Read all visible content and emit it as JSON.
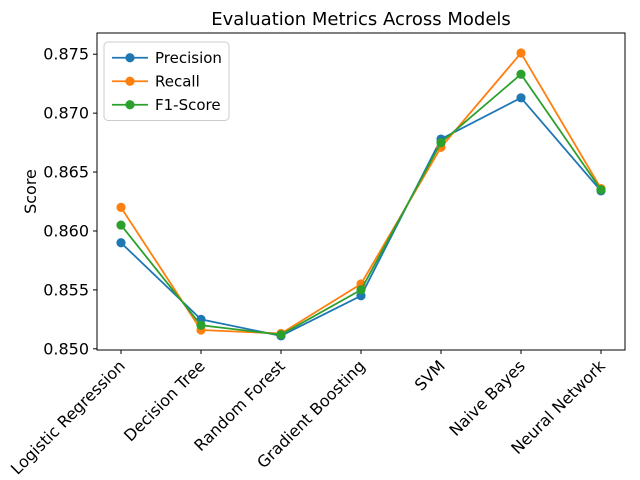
{
  "figure": {
    "background": "#ffffff",
    "axes_edge_color": "#000000",
    "legend_border_color": "#cccccc"
  },
  "chart_data": {
    "type": "line",
    "title": "Evaluation Metrics Across Models",
    "xlabel": "",
    "ylabel": "Score",
    "categories": [
      "Logistic Regression",
      "Decision Tree",
      "Random Forest",
      "Gradient Boosting",
      "SVM",
      "Naive Bayes",
      "Neural Network"
    ],
    "series": [
      {
        "name": "Precision",
        "color": "#1f77b4",
        "values": [
          0.859,
          0.8525,
          0.8511,
          0.8545,
          0.8678,
          0.8713,
          0.8634
        ]
      },
      {
        "name": "Recall",
        "color": "#ff7f0e",
        "values": [
          0.862,
          0.8516,
          0.8513,
          0.8555,
          0.8671,
          0.8751,
          0.8636
        ]
      },
      {
        "name": "F1-Score",
        "color": "#2ca02c",
        "values": [
          0.8605,
          0.852,
          0.8512,
          0.855,
          0.8675,
          0.8733,
          0.8635
        ]
      }
    ],
    "y_ticks": [
      0.85,
      0.855,
      0.86,
      0.865,
      0.87,
      0.875
    ],
    "y_tick_labels": [
      "0.850",
      "0.855",
      "0.860",
      "0.865",
      "0.870",
      "0.875"
    ],
    "ylim": [
      0.8499,
      0.8768
    ],
    "x_tick_rotation_deg": 45,
    "grid": false,
    "marker": "circle",
    "legend_position": "upper left",
    "legend_entries": [
      "Precision",
      "Recall",
      "F1-Score"
    ]
  }
}
